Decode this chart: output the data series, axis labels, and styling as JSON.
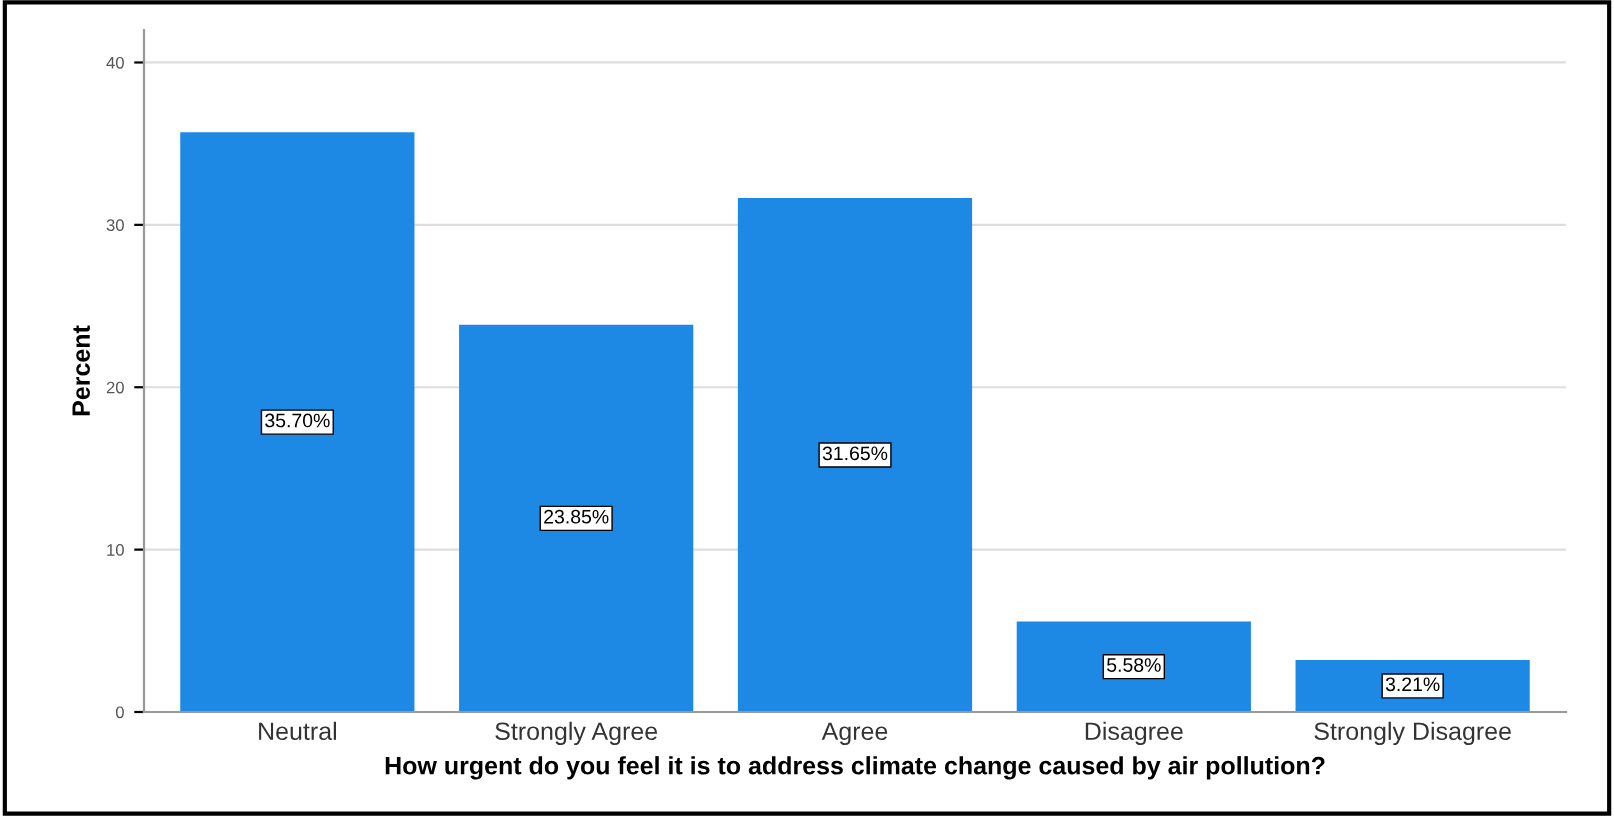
{
  "chart_data": {
    "type": "bar",
    "xlabel": "How urgent do you feel it is to address climate change caused by air pollution?",
    "ylabel": "Percent",
    "categories": [
      "Neutral",
      "Strongly Agree",
      "Agree",
      "Disagree",
      "Strongly Disagree"
    ],
    "values": [
      35.7,
      23.85,
      31.65,
      5.58,
      3.21
    ],
    "value_labels": [
      "35.70%",
      "23.85%",
      "31.65%",
      "5.58%",
      "3.21%"
    ],
    "color": "#1e88e5",
    "ylim": [
      0,
      42
    ],
    "yticks": [
      0,
      10,
      20,
      30,
      40
    ],
    "grid": "y"
  }
}
